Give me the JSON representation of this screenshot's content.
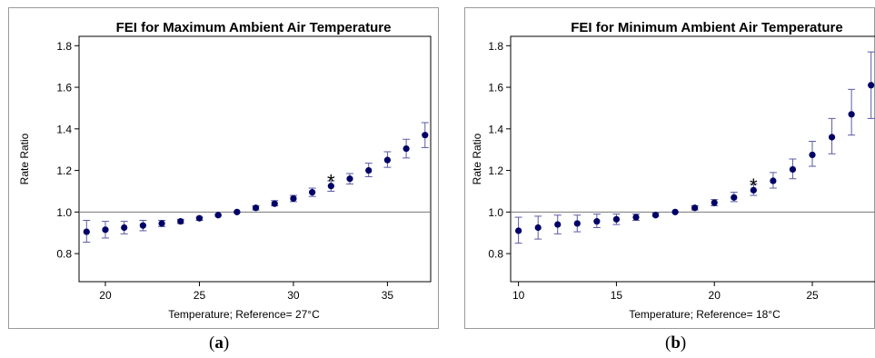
{
  "chart_data": [
    {
      "type": "scatter",
      "title": "FEI for Maximum Ambient Air Temperature",
      "xlabel": "Temperature; Reference= 27°C",
      "ylabel": "Rate Ratio",
      "xlim": [
        18.6,
        37.3
      ],
      "ylim": [
        0.665,
        1.845
      ],
      "xticks": [
        20,
        25,
        30,
        35
      ],
      "yticks": [
        0.8,
        1.0,
        1.2,
        1.4,
        1.6,
        1.8
      ],
      "ytick_labels": [
        "0.8",
        "1.0",
        "1.2",
        "1.4",
        "1.6",
        "1.8"
      ],
      "reference_line": 1.0,
      "marker_color": "#000066",
      "errorbar_color": "#5a5aa6",
      "annotation": {
        "text": "*",
        "x": 32,
        "y": 1.175
      },
      "x": [
        19,
        20,
        21,
        22,
        23,
        24,
        25,
        26,
        27,
        28,
        29,
        30,
        31,
        32,
        33,
        34,
        35,
        36,
        37
      ],
      "y": [
        0.905,
        0.915,
        0.925,
        0.935,
        0.945,
        0.955,
        0.97,
        0.985,
        1.0,
        1.02,
        1.04,
        1.065,
        1.095,
        1.125,
        1.16,
        1.2,
        1.25,
        1.305,
        1.37
      ],
      "y_lower": [
        0.855,
        0.875,
        0.895,
        0.91,
        0.93,
        0.945,
        0.96,
        0.98,
        1.0,
        1.01,
        1.03,
        1.05,
        1.075,
        1.1,
        1.135,
        1.17,
        1.215,
        1.26,
        1.31
      ],
      "y_upper": [
        0.96,
        0.955,
        0.955,
        0.96,
        0.96,
        0.965,
        0.975,
        0.99,
        1.0,
        1.03,
        1.055,
        1.08,
        1.115,
        1.15,
        1.185,
        1.235,
        1.29,
        1.35,
        1.43
      ]
    },
    {
      "type": "scatter",
      "title": "FEI for Minimum Ambient Air Temperature",
      "xlabel": "Temperature; Reference= 18°C",
      "ylabel": "Rate Ratio",
      "xlim": [
        9.6,
        28.2
      ],
      "ylim": [
        0.665,
        1.845
      ],
      "xticks": [
        10,
        15,
        20,
        25
      ],
      "yticks": [
        0.8,
        1.0,
        1.2,
        1.4,
        1.6,
        1.8
      ],
      "ytick_labels": [
        "0.8",
        "1.0",
        "1.2",
        "1.4",
        "1.6",
        "1.8"
      ],
      "reference_line": 1.0,
      "marker_color": "#000066",
      "errorbar_color": "#5a5aa6",
      "annotation": {
        "text": "*",
        "x": 22,
        "y": 1.155
      },
      "x": [
        10,
        11,
        12,
        13,
        14,
        15,
        16,
        17,
        18,
        19,
        20,
        21,
        22,
        23,
        24,
        25,
        26,
        27,
        28
      ],
      "y": [
        0.91,
        0.925,
        0.94,
        0.945,
        0.955,
        0.965,
        0.975,
        0.985,
        1.0,
        1.02,
        1.045,
        1.07,
        1.105,
        1.15,
        1.205,
        1.275,
        1.36,
        1.47,
        1.61
      ],
      "y_lower": [
        0.85,
        0.87,
        0.895,
        0.905,
        0.925,
        0.94,
        0.96,
        0.98,
        1.0,
        1.01,
        1.03,
        1.05,
        1.08,
        1.115,
        1.16,
        1.22,
        1.28,
        1.37,
        1.45
      ],
      "y_upper": [
        0.975,
        0.98,
        0.985,
        0.985,
        0.99,
        0.99,
        0.99,
        0.995,
        1.0,
        1.03,
        1.06,
        1.095,
        1.135,
        1.19,
        1.255,
        1.34,
        1.45,
        1.59,
        1.77
      ]
    }
  ],
  "captions": [
    {
      "open": "(",
      "letter": "a",
      "close": ")"
    },
    {
      "open": "(",
      "letter": "b",
      "close": ")"
    }
  ]
}
